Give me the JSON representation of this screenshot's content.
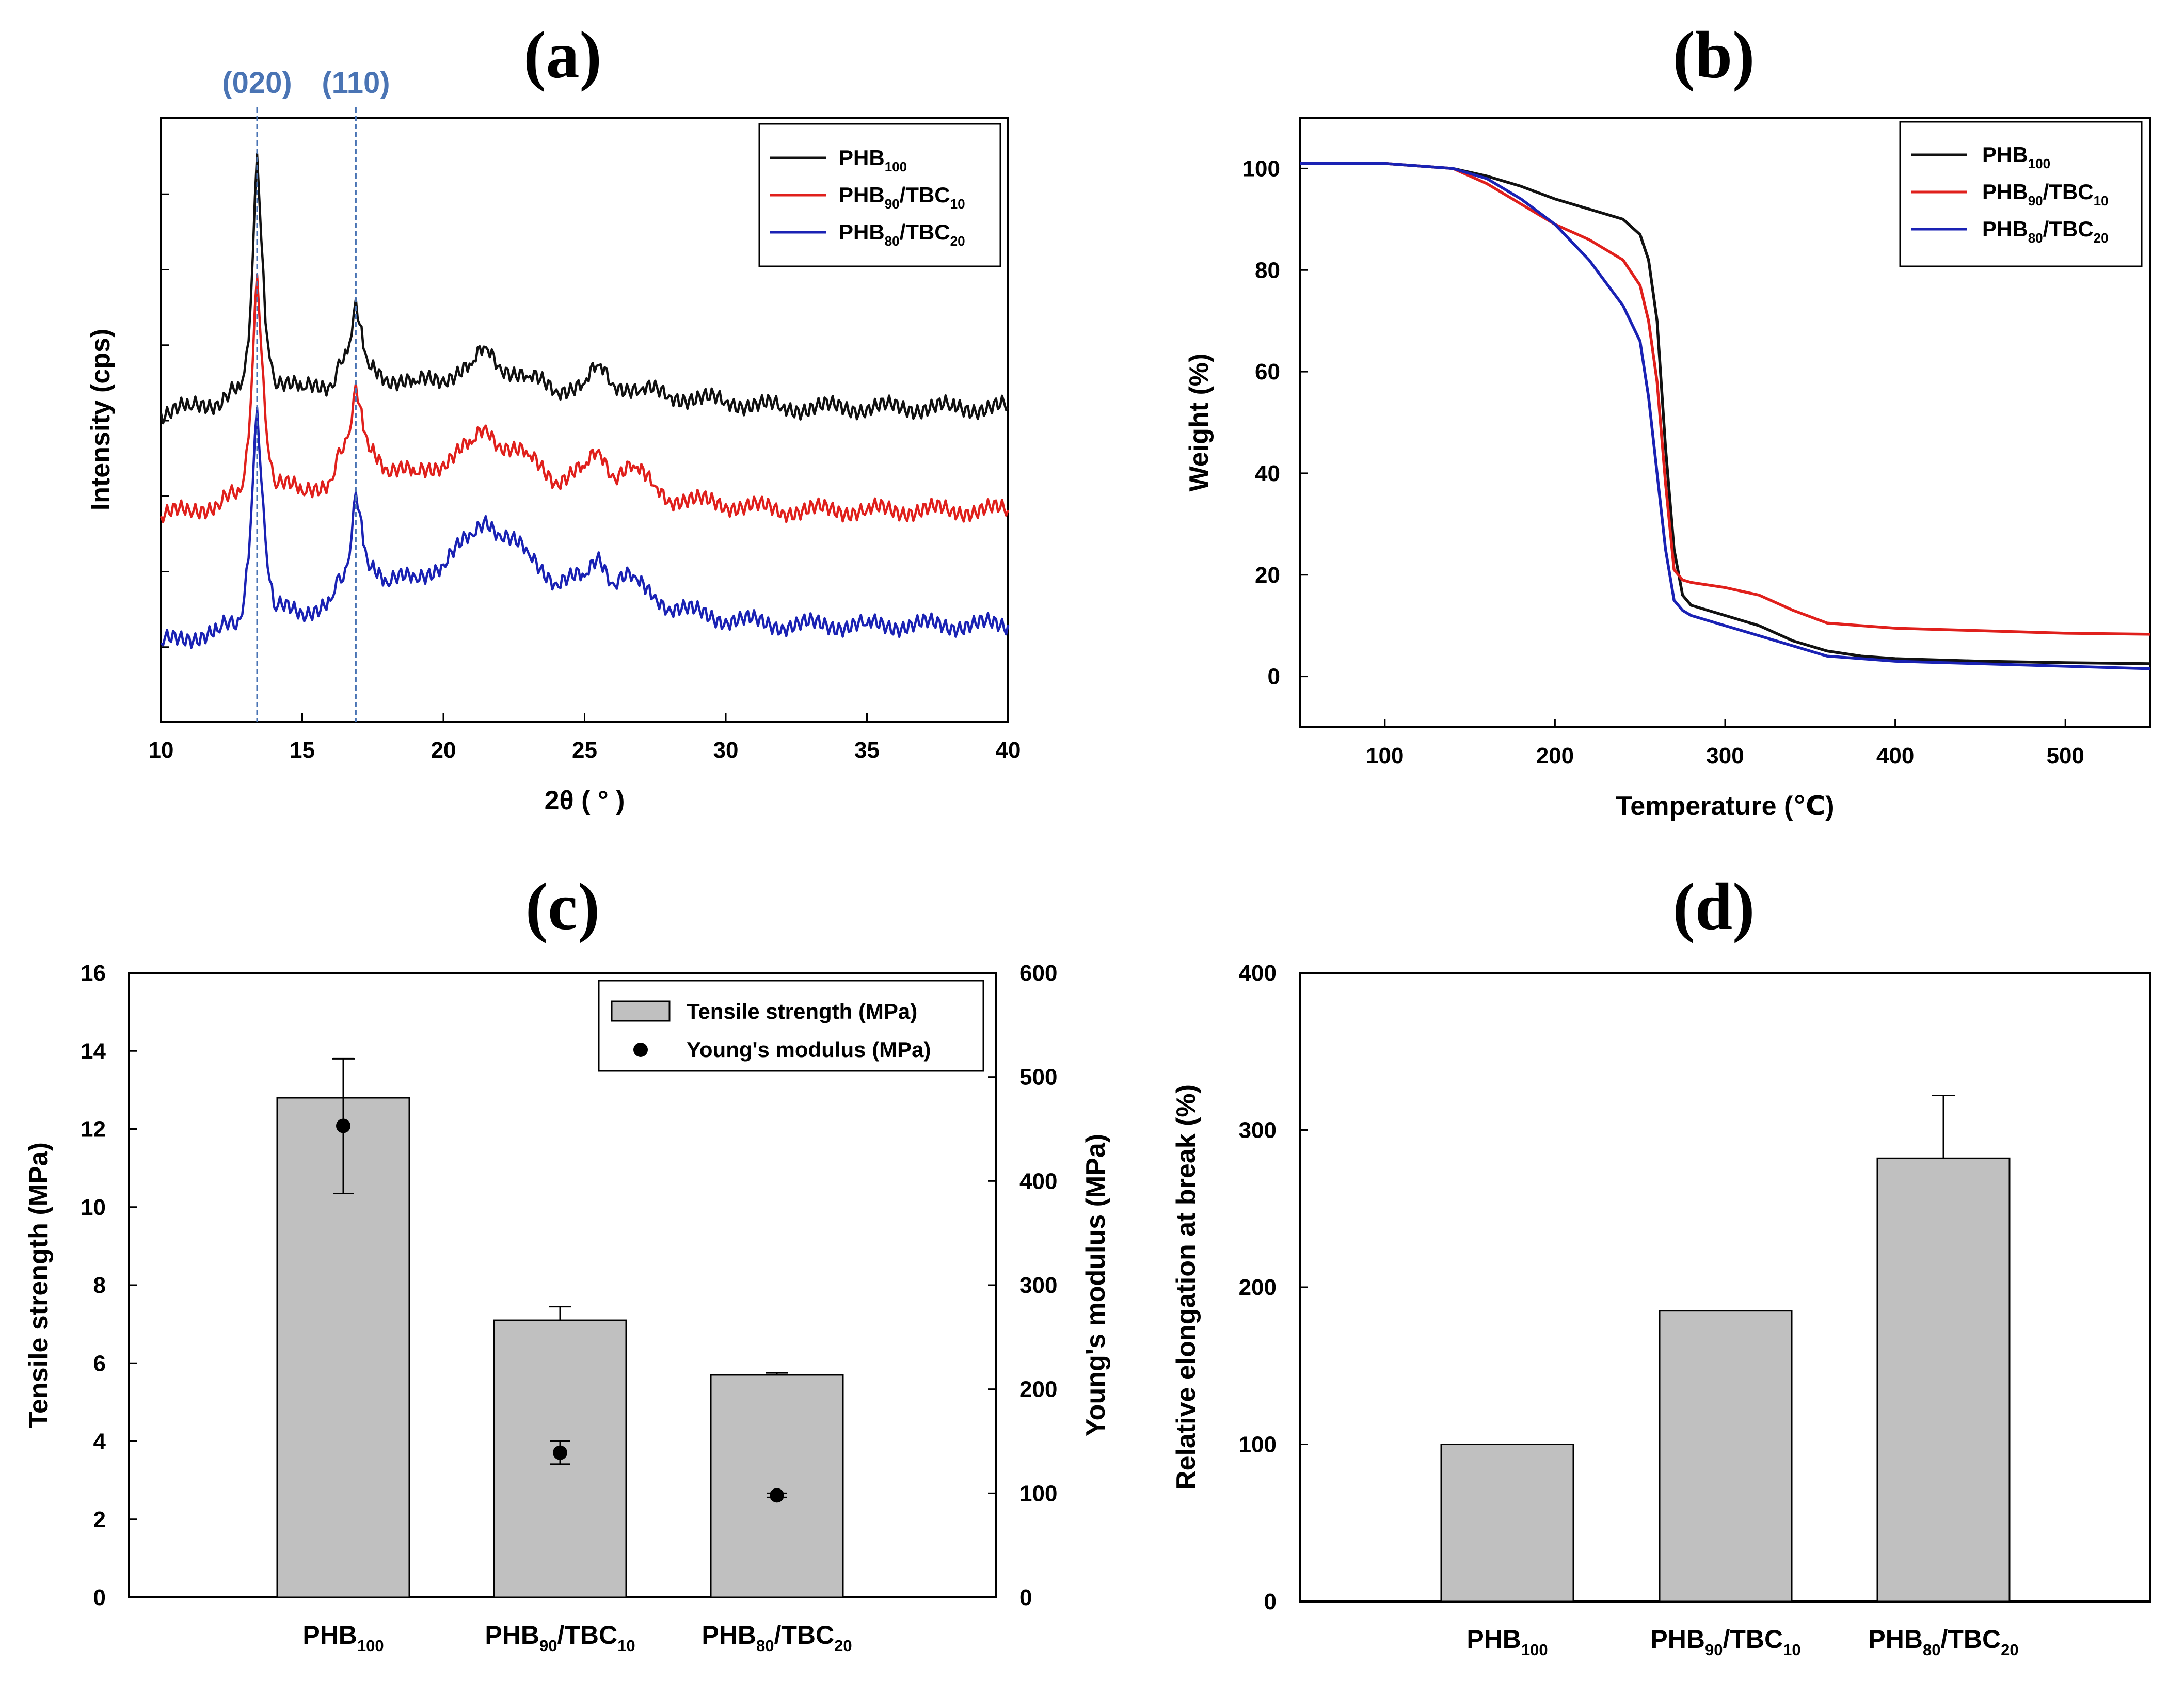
{
  "colors": {
    "phb100": "#111111",
    "phb90": "#e0201c",
    "phb80": "#1a22b4",
    "peak_marker": "#4a74b4",
    "bar_fill": "#c0c0c0"
  },
  "panels": [
    {
      "label": "(a)"
    },
    {
      "label": "(b)"
    },
    {
      "label": "(c)"
    },
    {
      "label": "(d)"
    }
  ],
  "chart_data": [
    {
      "type": "line",
      "title": "(a)",
      "xlabel": "2θ ( ° )",
      "ylabel": "Intensity (cps)",
      "xlim": [
        10,
        40
      ],
      "xticks": [
        10,
        15,
        20,
        25,
        30,
        35,
        40
      ],
      "peak_labels": [
        {
          "text": "(020)",
          "x": 13.4
        },
        {
          "text": "(110)",
          "x": 16.9
        }
      ],
      "legend_position": "top-right",
      "series": [
        {
          "base": "PHB",
          "sub": "100",
          "x": [
            10,
            11,
            12,
            12.8,
            13.1,
            13.4,
            13.7,
            14,
            15,
            16,
            16.6,
            16.9,
            17.3,
            18,
            19,
            20,
            21,
            21.5,
            22,
            23,
            24,
            25,
            25.5,
            26,
            27,
            28,
            30,
            32,
            35,
            38,
            40
          ],
          "y": [
            0.51,
            0.52,
            0.53,
            0.55,
            0.63,
            0.94,
            0.66,
            0.57,
            0.55,
            0.56,
            0.61,
            0.7,
            0.6,
            0.57,
            0.56,
            0.57,
            0.59,
            0.62,
            0.59,
            0.57,
            0.55,
            0.56,
            0.59,
            0.56,
            0.55,
            0.54,
            0.53,
            0.52,
            0.52,
            0.52,
            0.52
          ]
        },
        {
          "base": "PHB",
          "sub": "90",
          "base2": "/TBC",
          "sub2": "10",
          "x": [
            10,
            11,
            12,
            12.8,
            13.1,
            13.4,
            13.7,
            14,
            15,
            16,
            16.6,
            16.9,
            17.3,
            18,
            19,
            20,
            21,
            21.5,
            22,
            23,
            24,
            25,
            25.5,
            26,
            26.8,
            27.5,
            28,
            30,
            32,
            35,
            38,
            40
          ],
          "y": [
            0.34,
            0.35,
            0.36,
            0.38,
            0.47,
            0.74,
            0.5,
            0.4,
            0.38,
            0.4,
            0.47,
            0.56,
            0.47,
            0.42,
            0.41,
            0.43,
            0.46,
            0.49,
            0.46,
            0.44,
            0.4,
            0.42,
            0.45,
            0.41,
            0.42,
            0.39,
            0.37,
            0.36,
            0.35,
            0.35,
            0.35,
            0.35
          ]
        },
        {
          "base": "PHB",
          "sub": "80",
          "base2": "/TBC",
          "sub2": "20",
          "x": [
            10,
            11,
            12,
            12.8,
            13.1,
            13.4,
            13.7,
            14,
            15,
            16,
            16.6,
            16.9,
            17.3,
            18,
            19,
            20,
            21,
            21.5,
            22,
            23,
            24,
            25,
            25.5,
            26,
            26.8,
            27.5,
            28,
            30,
            32,
            35,
            38,
            40
          ],
          "y": [
            0.13,
            0.14,
            0.15,
            0.17,
            0.27,
            0.52,
            0.3,
            0.19,
            0.18,
            0.2,
            0.26,
            0.38,
            0.27,
            0.23,
            0.24,
            0.26,
            0.31,
            0.34,
            0.31,
            0.28,
            0.23,
            0.24,
            0.28,
            0.23,
            0.24,
            0.21,
            0.19,
            0.17,
            0.16,
            0.16,
            0.16,
            0.16
          ]
        }
      ]
    },
    {
      "type": "line",
      "title": "(b)",
      "xlabel": "Temperature (℃)",
      "ylabel": "Weight (%)",
      "xlim": [
        50,
        550
      ],
      "ylim": [
        -10,
        110
      ],
      "xticks": [
        100,
        200,
        300,
        400,
        500
      ],
      "yticks": [
        0,
        20,
        40,
        60,
        80,
        100
      ],
      "legend_position": "top-right",
      "series": [
        {
          "base": "PHB",
          "sub": "100",
          "x": [
            50,
            100,
            140,
            160,
            180,
            200,
            220,
            240,
            250,
            255,
            260,
            265,
            270,
            275,
            280,
            290,
            300,
            320,
            340,
            360,
            380,
            400,
            450,
            500,
            550
          ],
          "y": [
            101,
            101,
            100,
            98.5,
            96.5,
            94,
            92,
            90,
            87,
            82,
            70,
            45,
            25,
            16,
            14,
            13,
            12,
            10,
            7,
            5,
            4,
            3.5,
            3,
            2.7,
            2.5
          ]
        },
        {
          "base": "PHB",
          "sub": "90",
          "base2": "/TBC",
          "sub2": "10",
          "x": [
            50,
            100,
            140,
            160,
            180,
            200,
            220,
            240,
            250,
            255,
            260,
            265,
            270,
            275,
            280,
            300,
            320,
            340,
            360,
            380,
            400,
            450,
            500,
            550
          ],
          "y": [
            101,
            101,
            100,
            97,
            93,
            89,
            86,
            82,
            77,
            70,
            58,
            38,
            21,
            19,
            18.5,
            17.5,
            16,
            13,
            10.5,
            10,
            9.5,
            9,
            8.5,
            8.3
          ]
        },
        {
          "base": "PHB",
          "sub": "80",
          "base2": "/TBC",
          "sub2": "20",
          "x": [
            50,
            100,
            140,
            160,
            180,
            200,
            220,
            240,
            250,
            255,
            260,
            265,
            270,
            275,
            280,
            300,
            320,
            340,
            360,
            380,
            400,
            450,
            500,
            550
          ],
          "y": [
            101,
            101,
            100,
            98,
            94,
            89,
            82,
            73,
            66,
            55,
            40,
            25,
            15,
            13,
            12,
            10,
            8,
            6,
            4,
            3.5,
            3,
            2.5,
            2,
            1.5
          ]
        }
      ]
    },
    {
      "type": "bar",
      "title": "(c)",
      "ylabel": "Tensile strength (MPa)",
      "y2label": "Young's modulus (MPa)",
      "ylim": [
        0,
        16
      ],
      "y2lim": [
        0,
        600
      ],
      "yticks": [
        0,
        2,
        4,
        6,
        8,
        10,
        12,
        14,
        16
      ],
      "y2ticks": [
        0,
        100,
        200,
        300,
        400,
        500,
        600
      ],
      "legend_position": "top-right",
      "categories": [
        {
          "base": "PHB",
          "sub": "100"
        },
        {
          "base": "PHB",
          "sub": "90",
          "base2": "/TBC",
          "sub2": "10"
        },
        {
          "base": "PHB",
          "sub": "80",
          "base2": "/TBC",
          "sub2": "20"
        }
      ],
      "series": [
        {
          "name": "Tensile strength (MPa)",
          "axis": "left",
          "values": [
            12.8,
            7.1,
            5.7
          ],
          "errors": [
            1.0,
            0.35,
            0.05
          ]
        },
        {
          "name": "Young's modulus (MPa)",
          "axis": "right",
          "values": [
            453,
            139,
            98
          ],
          "errors": [
            65,
            11,
            2
          ]
        }
      ]
    },
    {
      "type": "bar",
      "title": "(d)",
      "ylabel": "Relative elongation at break (%)",
      "ylim": [
        0,
        400
      ],
      "yticks": [
        0,
        100,
        200,
        300,
        400
      ],
      "categories": [
        {
          "base": "PHB",
          "sub": "100"
        },
        {
          "base": "PHB",
          "sub": "90",
          "base2": "/TBC",
          "sub2": "10"
        },
        {
          "base": "PHB",
          "sub": "80",
          "base2": "/TBC",
          "sub2": "20"
        }
      ],
      "series": [
        {
          "name": "Relative elongation at break (%)",
          "values": [
            100,
            185,
            282
          ],
          "errors": [
            0,
            0,
            40
          ]
        }
      ]
    }
  ]
}
